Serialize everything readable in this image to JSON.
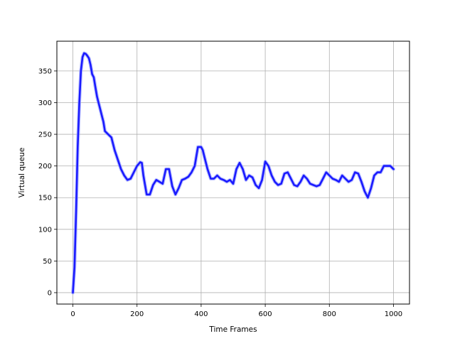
{
  "chart_data": {
    "type": "line",
    "title": "",
    "xlabel": "Time Frames",
    "ylabel": "Virtual queue",
    "xlim": [
      -50,
      1050
    ],
    "ylim": [
      -18,
      397
    ],
    "xticks": [
      0,
      200,
      400,
      600,
      800,
      1000
    ],
    "yticks": [
      0,
      50,
      100,
      150,
      200,
      250,
      300,
      350
    ],
    "grid": true,
    "legend": "none",
    "series": [
      {
        "color": "#1a1aff",
        "x": [
          0,
          5,
          10,
          15,
          20,
          25,
          30,
          35,
          40,
          45,
          50,
          55,
          60,
          65,
          70,
          75,
          80,
          85,
          90,
          95,
          100,
          110,
          120,
          130,
          140,
          150,
          160,
          170,
          180,
          190,
          200,
          210,
          215,
          220,
          230,
          240,
          250,
          260,
          270,
          280,
          290,
          300,
          310,
          320,
          330,
          340,
          350,
          360,
          370,
          380,
          390,
          400,
          405,
          410,
          420,
          430,
          440,
          450,
          460,
          470,
          480,
          490,
          500,
          510,
          520,
          530,
          540,
          550,
          560,
          570,
          580,
          590,
          600,
          610,
          620,
          630,
          640,
          650,
          660,
          670,
          680,
          690,
          700,
          710,
          720,
          730,
          740,
          750,
          760,
          770,
          780,
          790,
          800,
          810,
          820,
          830,
          840,
          850,
          860,
          870,
          880,
          890,
          900,
          910,
          920,
          930,
          940,
          950,
          960,
          970,
          980,
          990,
          1000
        ],
        "y": [
          0,
          40,
          130,
          230,
          300,
          350,
          372,
          378,
          377,
          374,
          370,
          360,
          345,
          340,
          325,
          310,
          300,
          290,
          280,
          270,
          255,
          250,
          245,
          225,
          210,
          195,
          185,
          178,
          180,
          190,
          200,
          206,
          205,
          185,
          155,
          155,
          170,
          178,
          175,
          172,
          195,
          195,
          168,
          155,
          165,
          178,
          180,
          183,
          190,
          200,
          230,
          230,
          225,
          215,
          195,
          180,
          180,
          185,
          180,
          178,
          175,
          178,
          172,
          195,
          205,
          195,
          178,
          185,
          182,
          170,
          165,
          178,
          207,
          200,
          185,
          175,
          170,
          172,
          188,
          190,
          180,
          170,
          168,
          175,
          185,
          180,
          172,
          170,
          168,
          170,
          180,
          190,
          185,
          180,
          178,
          175,
          185,
          180,
          175,
          178,
          190,
          188,
          175,
          160,
          150,
          165,
          185,
          190,
          190,
          200,
          200,
          200,
          195
        ]
      }
    ]
  }
}
